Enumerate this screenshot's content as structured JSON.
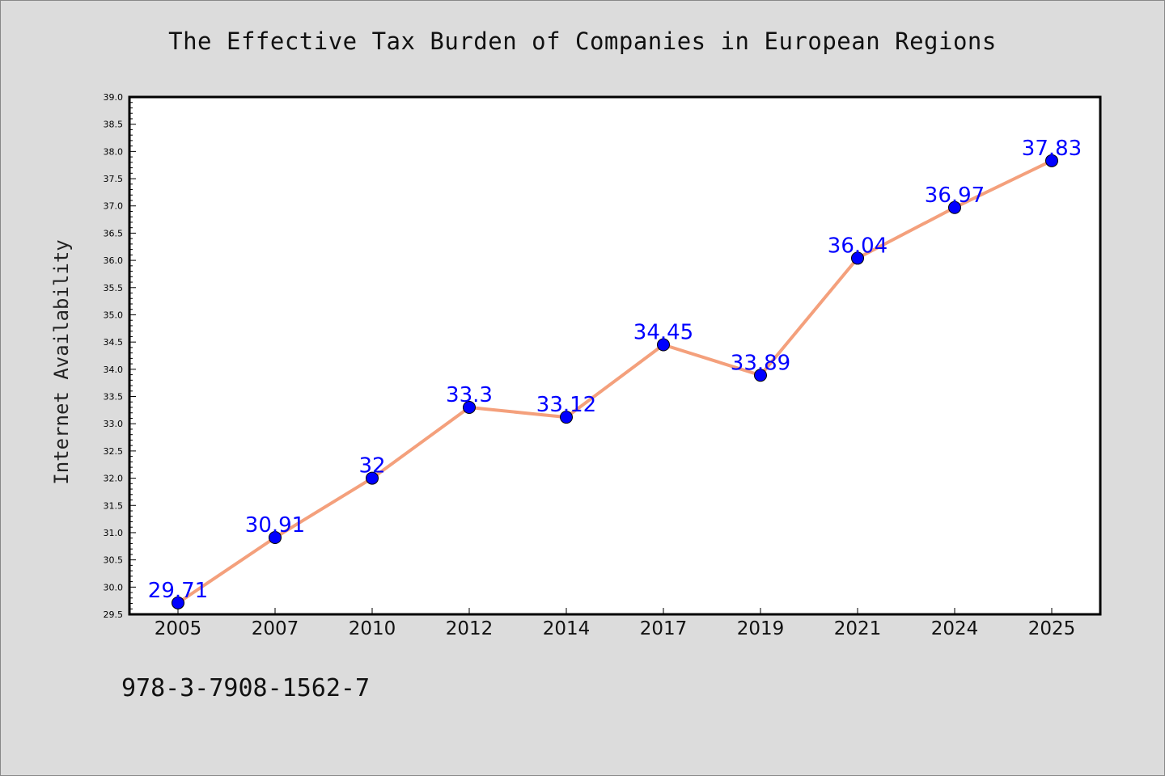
{
  "chart_data": {
    "type": "line",
    "title": "The Effective Tax Burden of Companies in European Regions",
    "ylabel": "Internet Availability",
    "xlabel": "",
    "categories": [
      "2005",
      "2007",
      "2010",
      "2012",
      "2014",
      "2017",
      "2019",
      "2021",
      "2024",
      "2025"
    ],
    "series": [
      {
        "values": [
          29.71,
          30.91,
          32,
          33.3,
          33.12,
          34.45,
          33.89,
          36.04,
          36.97,
          37.83
        ],
        "labels": [
          "29.71",
          "30.91",
          "32",
          "33.3",
          "33.12",
          "34.45",
          "33.89",
          "36.04",
          "36.97",
          "37.83"
        ]
      }
    ],
    "ylim": [
      29.5,
      39.0
    ],
    "yticks": [
      "29.5",
      "30.0",
      "30.5",
      "31.0",
      "31.5",
      "32.0",
      "32.5",
      "33.0",
      "33.5",
      "34.0",
      "34.5",
      "35.0",
      "35.5",
      "36.0",
      "36.5",
      "37.0",
      "37.5",
      "38.0",
      "38.5",
      "39.0"
    ],
    "grid": false,
    "colors": {
      "line": "#f4a07c",
      "marker": "#0000ff",
      "label": "#0000ff"
    }
  },
  "footer": {
    "code": "978-3-7908-1562-7"
  }
}
